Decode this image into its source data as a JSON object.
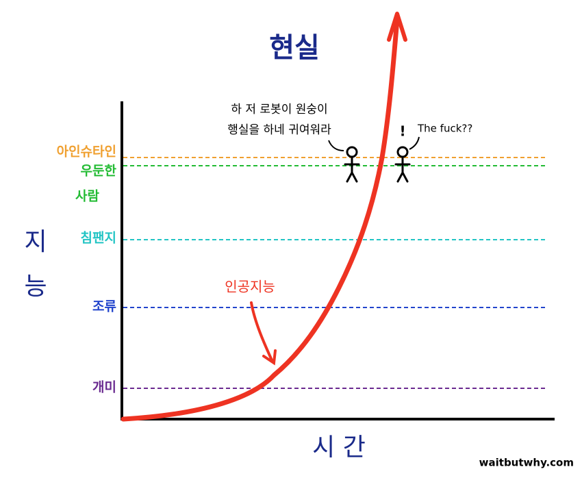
{
  "title": "현실",
  "y_label": [
    "지",
    "능"
  ],
  "x_label": "시 간",
  "levels": [
    {
      "label": [
        "아인슈타인"
      ],
      "color": "#f0a030"
    },
    {
      "label": [
        "우둔한",
        "사람"
      ],
      "color": "#22bb33"
    },
    {
      "label": [
        "침팬지"
      ],
      "color": "#22c4c4"
    },
    {
      "label": [
        "조류"
      ],
      "color": "#2244cc"
    },
    {
      "label": [
        "개미"
      ],
      "color": "#6a2a90"
    }
  ],
  "curve": {
    "label": "인공지능",
    "color": "#ee3322"
  },
  "speech_left": [
    "하 저 로봇이 원숭이",
    "행실을 하네 귀여워라"
  ],
  "speech_right": {
    "exclaim": "!",
    "text": "The fuck??"
  },
  "credit": "waitbutwhy.com"
}
